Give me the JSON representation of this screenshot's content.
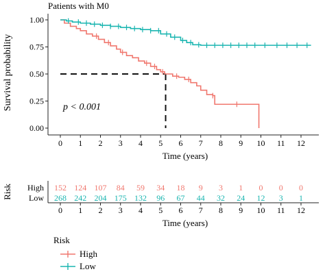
{
  "chart_data": [
    {
      "type": "line",
      "subtype": "kaplan-meier",
      "title": "Patients with M0",
      "xlabel": "Time (years)",
      "ylabel": "Survival probability",
      "xlim": [
        0,
        12.5
      ],
      "ylim": [
        0,
        1.0
      ],
      "x_ticks": [
        "0",
        "1",
        "2",
        "3",
        "4",
        "5",
        "6",
        "7",
        "8",
        "9",
        "10",
        "11",
        "12"
      ],
      "y_ticks": [
        "0.00",
        "0.25",
        "0.50",
        "0.75",
        "1.00"
      ],
      "annotation": "p < 0.001",
      "median_marker": {
        "x": 5.25,
        "y": 0.5,
        "style": "dashed"
      },
      "series": [
        {
          "name": "High",
          "color": "#F0776E",
          "x": [
            0,
            0.2,
            0.5,
            0.8,
            1.0,
            1.3,
            1.6,
            1.9,
            2.2,
            2.5,
            2.8,
            3.0,
            3.3,
            3.6,
            3.9,
            4.2,
            4.5,
            4.8,
            5.0,
            5.2,
            5.6,
            5.9,
            6.2,
            6.5,
            6.8,
            7.0,
            7.3,
            7.6,
            7.7,
            8.5,
            9.0,
            9.5,
            9.9,
            9.9
          ],
          "y": [
            1.0,
            0.97,
            0.94,
            0.92,
            0.9,
            0.87,
            0.85,
            0.82,
            0.79,
            0.76,
            0.73,
            0.7,
            0.67,
            0.65,
            0.62,
            0.6,
            0.57,
            0.54,
            0.52,
            0.5,
            0.48,
            0.47,
            0.45,
            0.42,
            0.39,
            0.35,
            0.31,
            0.3,
            0.22,
            0.22,
            0.22,
            0.22,
            0.22,
            0.0
          ],
          "censor_x": [
            1.8,
            2.4,
            3.1,
            4.3,
            4.7,
            5.1,
            5.8,
            6.4,
            7.6,
            8.8
          ]
        },
        {
          "name": "Low",
          "color": "#1AB5B0",
          "x": [
            0,
            0.3,
            0.6,
            1.0,
            1.5,
            2.0,
            2.5,
            3.0,
            3.5,
            4.0,
            4.5,
            5.0,
            5.5,
            6.0,
            6.3,
            6.6,
            7.0,
            7.5,
            8.0,
            9.0,
            10.0,
            11.0,
            12.0,
            12.5
          ],
          "y": [
            1.0,
            0.99,
            0.98,
            0.97,
            0.96,
            0.95,
            0.94,
            0.93,
            0.92,
            0.91,
            0.9,
            0.87,
            0.84,
            0.81,
            0.79,
            0.77,
            0.765,
            0.765,
            0.765,
            0.765,
            0.765,
            0.765,
            0.765,
            0.765
          ],
          "censor_x": [
            0.4,
            0.9,
            1.3,
            1.7,
            2.1,
            2.5,
            2.9,
            3.3,
            3.7,
            4.1,
            4.5,
            4.9,
            5.3,
            5.7,
            6.1,
            6.5,
            6.9,
            7.3,
            7.7,
            8.1,
            8.5,
            8.9,
            9.3,
            9.7,
            10.2,
            10.8,
            11.3,
            11.8,
            12.3
          ]
        }
      ]
    },
    {
      "type": "table",
      "title": "",
      "ylabel": "Risk",
      "xlabel": "Time (years)",
      "x_ticks": [
        "0",
        "1",
        "2",
        "3",
        "4",
        "5",
        "6",
        "7",
        "8",
        "9",
        "10",
        "11",
        "12"
      ],
      "rows": [
        {
          "name": "High",
          "color": "#F0776E",
          "values": [
            "152",
            "124",
            "107",
            "84",
            "59",
            "34",
            "18",
            "9",
            "3",
            "1",
            "0",
            "0",
            "0"
          ]
        },
        {
          "name": "Low",
          "color": "#1AB5B0",
          "values": [
            "268",
            "242",
            "204",
            "175",
            "132",
            "96",
            "67",
            "44",
            "32",
            "24",
            "12",
            "3",
            "1"
          ]
        }
      ]
    }
  ],
  "legend": {
    "title": "Risk",
    "items": [
      {
        "label": "High",
        "color": "#F0776E"
      },
      {
        "label": "Low",
        "color": "#1AB5B0"
      }
    ]
  }
}
